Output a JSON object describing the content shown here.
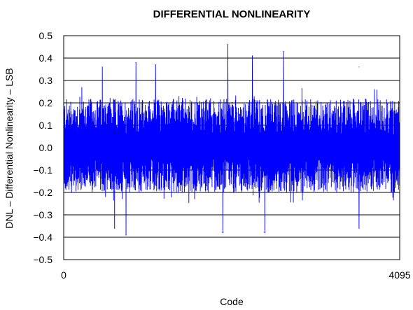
{
  "chart_data": {
    "type": "line",
    "title": "DIFFERENTIAL NONLINEARITY",
    "xlabel": "Code",
    "ylabel": "DNL – Differential Nonlinearity – LSB",
    "xlim": [
      0,
      4095
    ],
    "ylim": [
      -0.5,
      0.5
    ],
    "x_ticks": [
      0,
      4095
    ],
    "x_tick_labels": [
      "0",
      "4095"
    ],
    "y_ticks": [
      0.5,
      0.4,
      0.3,
      0.2,
      0.1,
      0.0,
      -0.1,
      -0.2,
      -0.3,
      -0.4,
      -0.5
    ],
    "y_tick_labels": [
      "0.5",
      "0.4",
      "0.3",
      "0.2",
      "0.1",
      "0.0",
      "−0.1",
      "−0.2",
      "−0.3",
      "−0.4",
      "−0.5"
    ],
    "grid": "horizontal",
    "series_color": "#0000ff",
    "series": [
      {
        "x_start": 0,
        "x_end": 4095,
        "typical_range": [
          -0.2,
          0.22
        ],
        "max": 0.46,
        "max_at_code": 2000,
        "min": -0.39,
        "min_at_code": 760,
        "notable_peaks": [
          {
            "x": 470,
            "y": 0.36
          },
          {
            "x": 880,
            "y": 0.38
          },
          {
            "x": 1120,
            "y": 0.37
          },
          {
            "x": 2000,
            "y": 0.46
          },
          {
            "x": 2300,
            "y": 0.41
          },
          {
            "x": 2680,
            "y": 0.43
          },
          {
            "x": 3600,
            "y": 0.36
          }
        ],
        "notable_troughs": [
          {
            "x": 620,
            "y": -0.36
          },
          {
            "x": 760,
            "y": -0.39
          },
          {
            "x": 1940,
            "y": -0.38
          },
          {
            "x": 2450,
            "y": -0.38
          },
          {
            "x": 3600,
            "y": -0.36
          }
        ]
      }
    ]
  }
}
